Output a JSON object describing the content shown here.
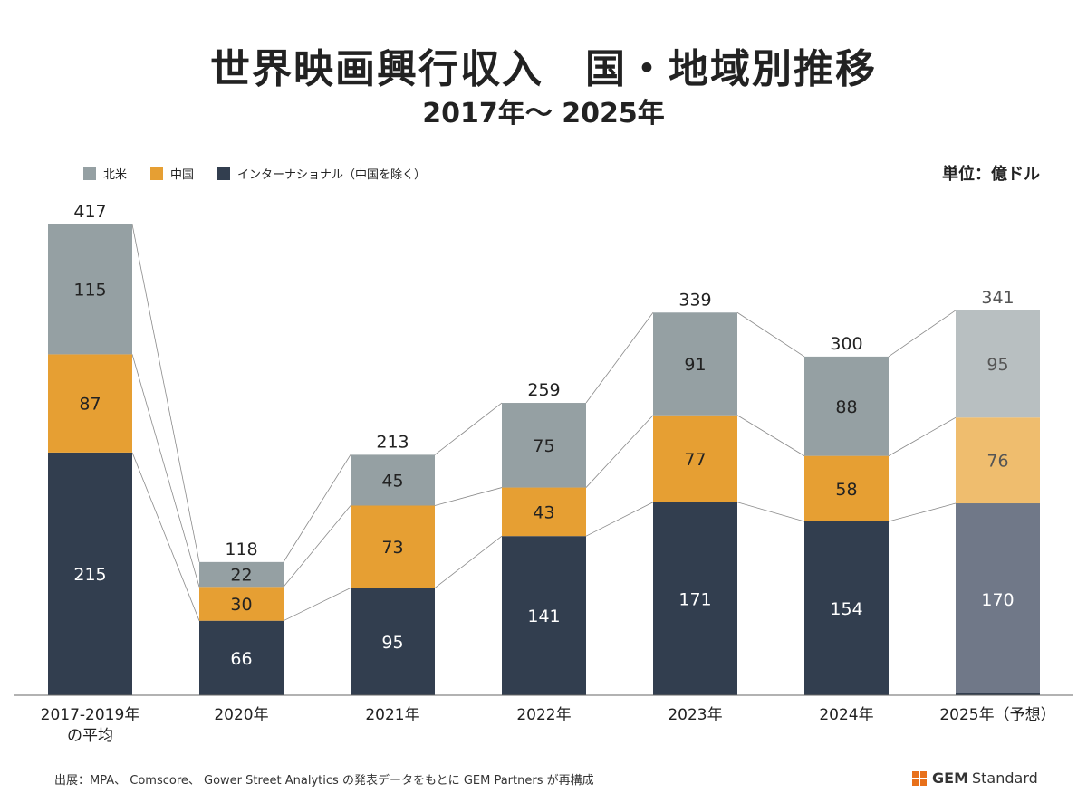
{
  "title": "世界映画興行収入　国・地域別推移",
  "subtitle": "2017年〜 2025年",
  "unit": "単位：億ドル",
  "legend": [
    {
      "label": "北米",
      "color": "#95a0a3"
    },
    {
      "label": "中国",
      "color": "#e69f33"
    },
    {
      "label": "インターナショナル（中国を除く）",
      "color": "#323e4f"
    }
  ],
  "source": "出展：MPA、 Comscore、 Gower Street Analytics の発表データをもとに GEM Partners が再構成",
  "brand": {
    "strong": "GEM",
    "rest": "Standard",
    "color": "#e8701a"
  },
  "chart_data": {
    "type": "bar",
    "stacked": true,
    "categories": [
      "2017-2019年\nの平均",
      "2020年",
      "2021年",
      "2022年",
      "2023年",
      "2024年",
      "2025年（予想）"
    ],
    "series": [
      {
        "name": "インターナショナル（中国を除く）",
        "values": [
          215,
          66,
          95,
          141,
          171,
          154,
          170
        ],
        "color": "#323e4f",
        "forecast_color": "#707888",
        "label_color": "#ffffff"
      },
      {
        "name": "中国",
        "values": [
          87,
          30,
          73,
          43,
          77,
          58,
          76
        ],
        "color": "#e69f33",
        "forecast_color": "#efbd6e",
        "label_color": "#222222"
      },
      {
        "name": "北米",
        "values": [
          115,
          22,
          45,
          75,
          91,
          88,
          95
        ],
        "color": "#95a0a3",
        "forecast_color": "#b8bfc1",
        "label_color": "#222222"
      }
    ],
    "totals": [
      417,
      118,
      213,
      259,
      339,
      300,
      341
    ],
    "forecast_index": 6,
    "ylim": [
      0,
      430
    ],
    "grid": false,
    "legend_position": "top-left"
  }
}
